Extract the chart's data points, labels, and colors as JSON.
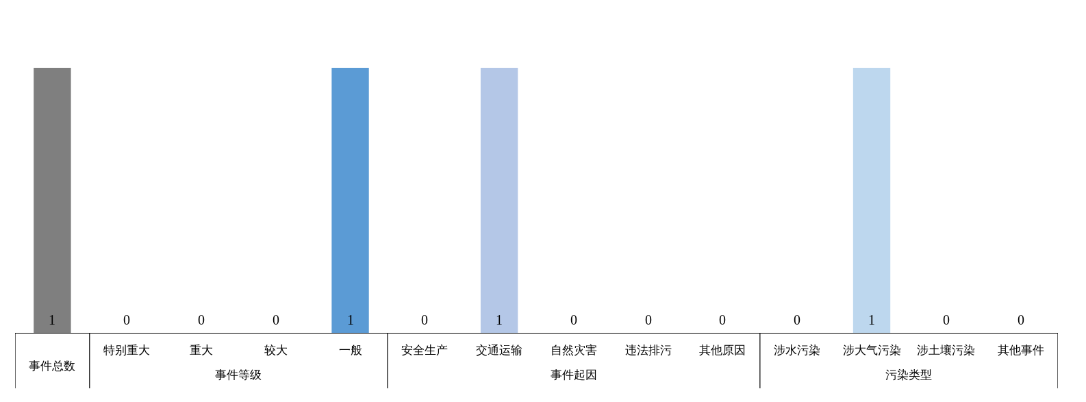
{
  "chart_data": {
    "type": "bar",
    "data_labels": true,
    "legend": false,
    "ylim": [
      0,
      1
    ],
    "categories": [
      "事件总数",
      "特别重大",
      "重大",
      "较大",
      "一般",
      "安全生产",
      "交通运输",
      "自然灾害",
      "违法排污",
      "其他原因",
      "涉水污染",
      "涉大气污染",
      "涉土壤污染",
      "其他事件"
    ],
    "values": [
      1,
      0,
      0,
      0,
      1,
      0,
      1,
      0,
      0,
      0,
      0,
      1,
      0,
      0
    ],
    "colors": [
      "#7f7f7f",
      "#5b9bd5",
      "#5b9bd5",
      "#5b9bd5",
      "#5b9bd5",
      "#b4c7e7",
      "#b4c7e7",
      "#b4c7e7",
      "#b4c7e7",
      "#b4c7e7",
      "#bdd7ee",
      "#bdd7ee",
      "#bdd7ee",
      "#bdd7ee"
    ],
    "annotations": [
      "事件等级",
      "事件起因",
      "污染类型"
    ]
  }
}
